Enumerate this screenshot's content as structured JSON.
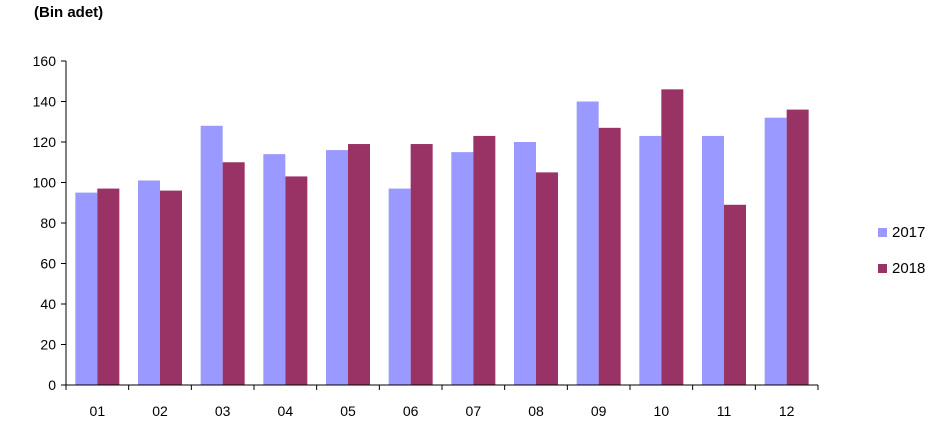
{
  "chart_data": {
    "type": "bar",
    "title": "",
    "xlabel": "",
    "ylabel": "(Bin adet)",
    "categories": [
      "01",
      "02",
      "03",
      "04",
      "05",
      "06",
      "07",
      "08",
      "09",
      "10",
      "11",
      "12"
    ],
    "series": [
      {
        "name": "2017",
        "color": "#9999FF",
        "values": [
          95,
          101,
          128,
          114,
          116,
          97,
          115,
          120,
          140,
          123,
          123,
          132
        ]
      },
      {
        "name": "2018",
        "color": "#993366",
        "values": [
          97,
          96,
          110,
          103,
          119,
          119,
          123,
          105,
          127,
          146,
          89,
          136
        ]
      }
    ],
    "ylim": [
      0,
      160
    ],
    "yticks": [
      0,
      20,
      40,
      60,
      80,
      100,
      120,
      140,
      160
    ],
    "grid": false,
    "legend": "right"
  }
}
